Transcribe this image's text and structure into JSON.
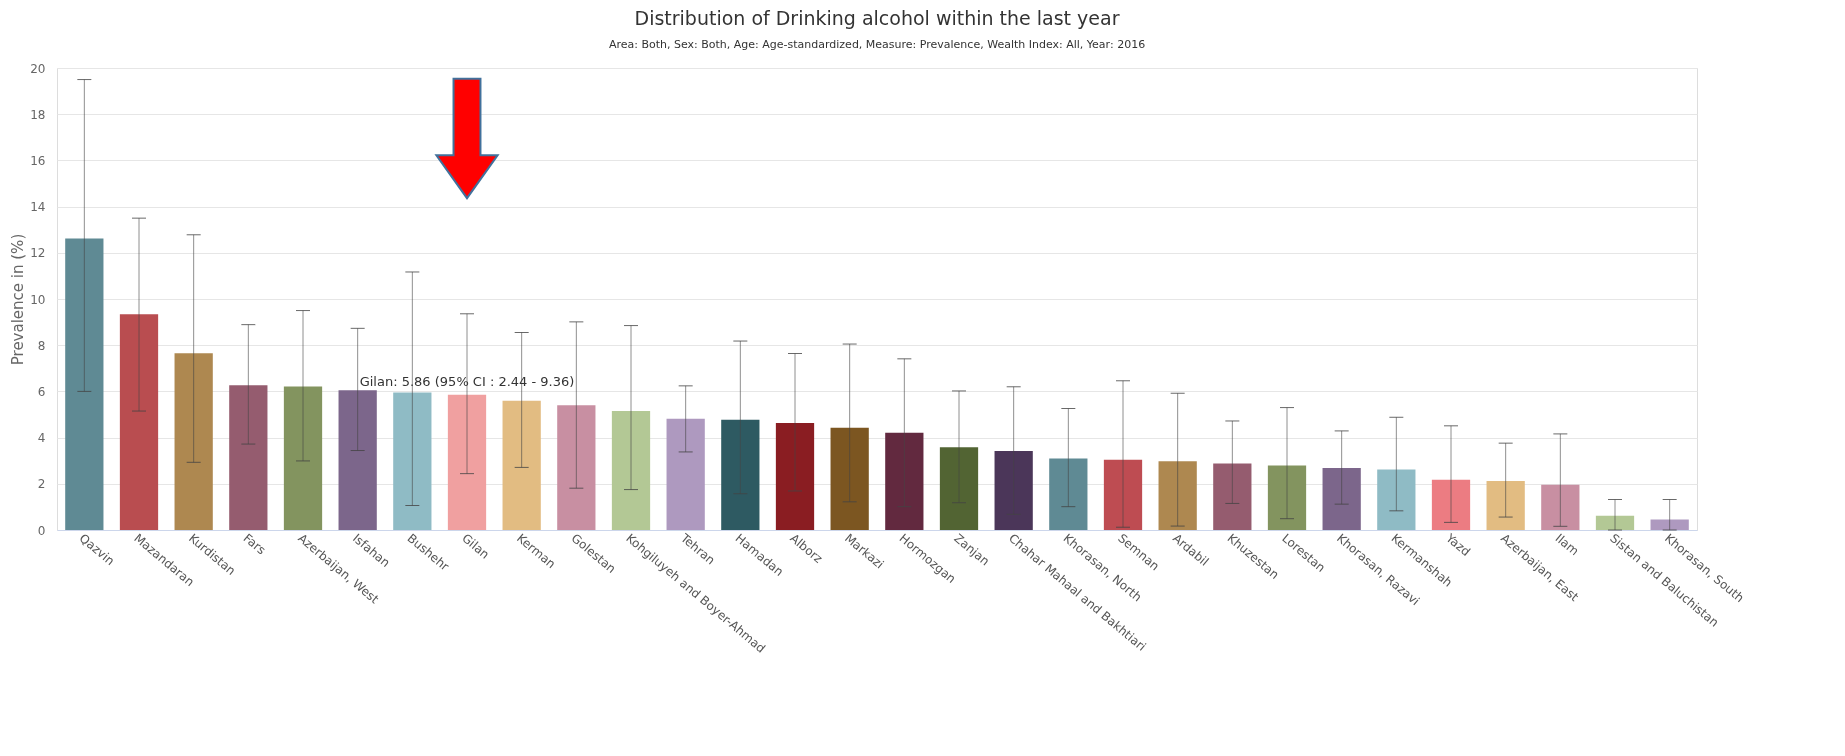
{
  "chart_data": {
    "type": "bar",
    "title": "Distribution of Drinking alcohol within the last year",
    "subtitle": "Area: Both, Sex: Both, Age: Age-standardized, Measure: Prevalence, Wealth Index: All, Year: 2016",
    "ylabel": "Prevalence in (%)",
    "categories": [
      "Qazvin",
      "Mazandaran",
      "Kurdistan",
      "Fars",
      "Azerbaijan, West",
      "Isfahan",
      "Bushehr",
      "Gilan",
      "Kerman",
      "Golestan",
      "Kohgiluyeh and Boyer-Ahmad",
      "Tehran",
      "Hamadan",
      "Alborz",
      "Markazi",
      "Hormozgan",
      "Zanjan",
      "Chahar Mahaal and Bakhtiari",
      "Khorasan, North",
      "Semnan",
      "Ardabil",
      "Khuzestan",
      "Lorestan",
      "Khorasan, Razavi",
      "Kermanshah",
      "Yazd",
      "Azerbaijan, East",
      "Ilam",
      "Sistan and Baluchistan",
      "Khorasan, South"
    ],
    "values": [
      12.62,
      9.34,
      7.65,
      6.27,
      6.21,
      6.05,
      5.95,
      5.86,
      5.6,
      5.4,
      5.15,
      4.82,
      4.77,
      4.63,
      4.43,
      4.21,
      3.58,
      3.42,
      3.09,
      3.04,
      2.98,
      2.88,
      2.79,
      2.68,
      2.62,
      2.18,
      2.12,
      1.96,
      0.62,
      0.45
    ],
    "errors": [
      [
        6.0,
        19.5
      ],
      [
        5.15,
        13.5
      ],
      [
        2.93,
        12.78
      ],
      [
        3.72,
        8.89
      ],
      [
        2.99,
        9.5
      ],
      [
        3.44,
        8.73
      ],
      [
        1.06,
        11.17
      ],
      [
        2.44,
        9.36
      ],
      [
        2.71,
        8.55
      ],
      [
        1.81,
        9.01
      ],
      [
        1.75,
        8.85
      ],
      [
        3.38,
        6.24
      ],
      [
        1.57,
        8.18
      ],
      [
        1.69,
        7.64
      ],
      [
        1.22,
        8.05
      ],
      [
        1.01,
        7.41
      ],
      [
        1.18,
        6.02
      ],
      [
        0.68,
        6.2
      ],
      [
        1.01,
        5.26
      ],
      [
        0.12,
        6.46
      ],
      [
        0.17,
        5.92
      ],
      [
        1.15,
        4.72
      ],
      [
        0.49,
        5.3
      ],
      [
        1.12,
        4.29
      ],
      [
        0.83,
        4.88
      ],
      [
        0.33,
        4.51
      ],
      [
        0.56,
        3.76
      ],
      [
        0.16,
        4.16
      ],
      [
        0.0,
        1.32
      ],
      [
        0.0,
        1.32
      ]
    ],
    "colors": [
      "#5f8a94",
      "#b94d50",
      "#ae8850",
      "#955c6f",
      "#83945f",
      "#7c668b",
      "#8fbbc5",
      "#f0a0a0",
      "#e2bc82",
      "#c88fa2",
      "#b3c895",
      "#ae99bf",
      "#2e5a62",
      "#8a1d22",
      "#7c5621",
      "#62293f",
      "#526433",
      "#4b3659",
      "#5f8a94",
      "#be4c52",
      "#ae8850",
      "#955c6f",
      "#83945f",
      "#7c668b",
      "#8fbbc5",
      "#ec7c82",
      "#e2bc82",
      "#c88fa2",
      "#b3c895",
      "#ae99bf"
    ],
    "ylim": [
      0,
      20
    ],
    "yticks": [
      0,
      2,
      4,
      6,
      8,
      10,
      12,
      14,
      16,
      18,
      20
    ],
    "grid": "y",
    "annotations": [
      {
        "text": "Gilan: 5.86 (95% CI : 2.44 - 9.36)",
        "x": "Gilan",
        "y": 5.86
      }
    ]
  }
}
